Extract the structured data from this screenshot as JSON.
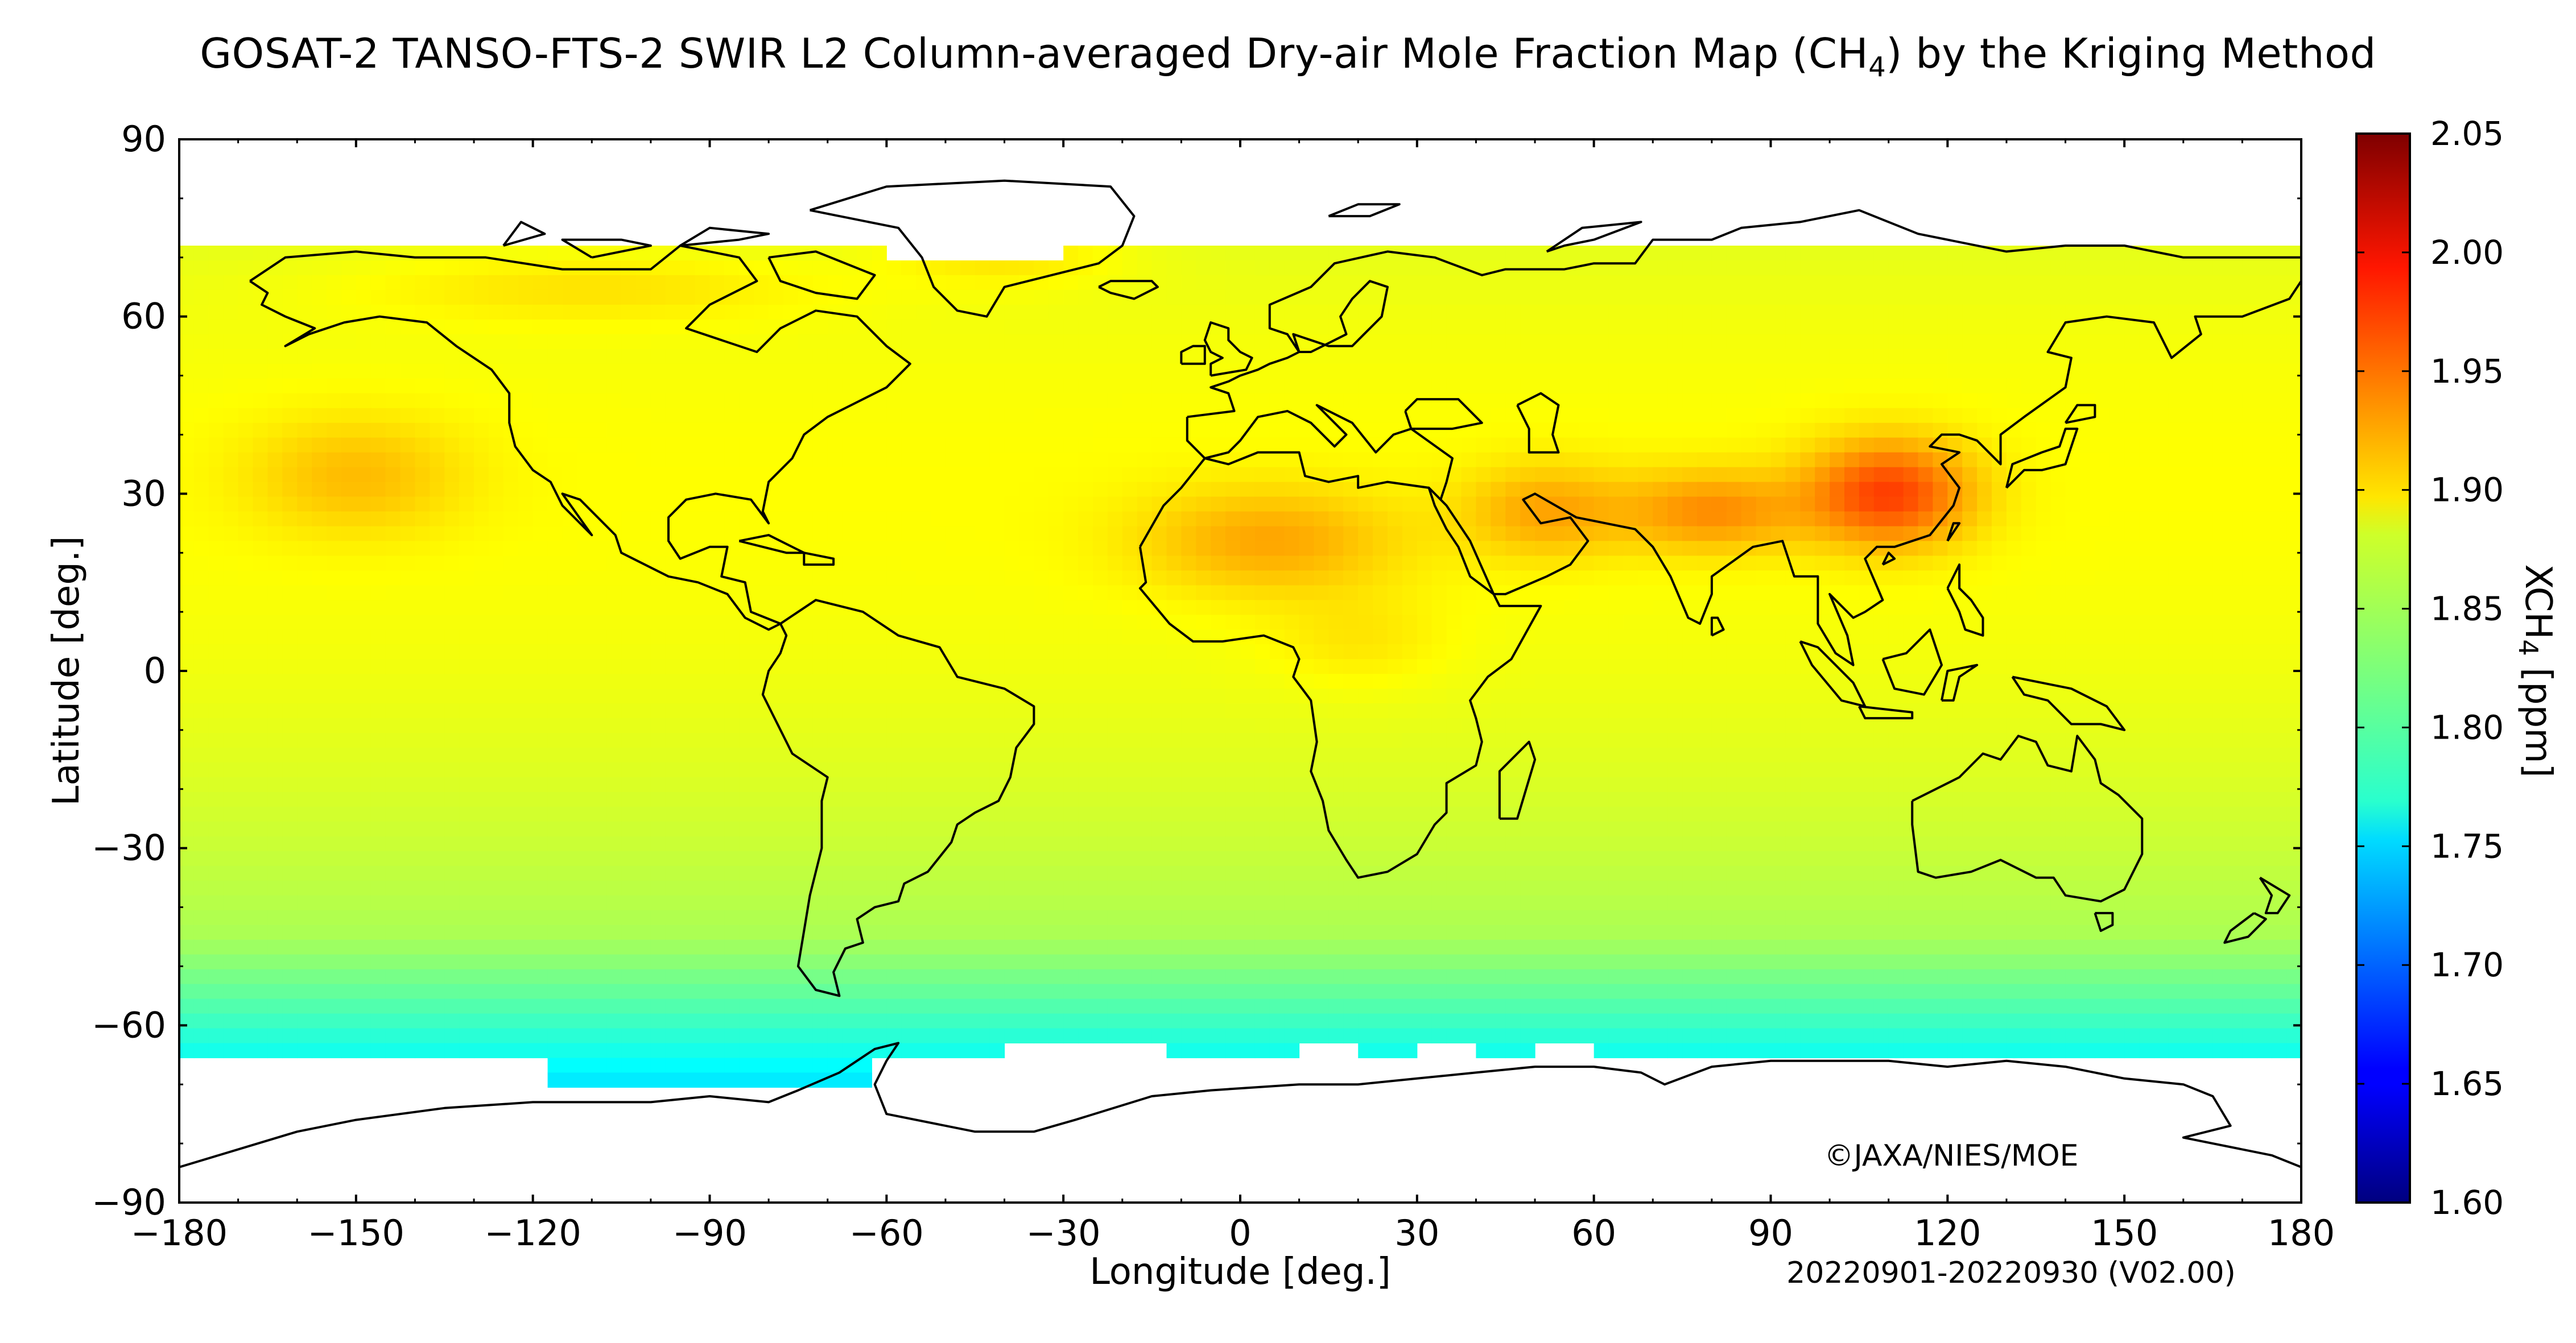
{
  "title": {
    "prefix": "GOSAT-2 TANSO-FTS-2 SWIR L2 Column-averaged Dry-air Mole Fraction Map (CH",
    "subscript": "4",
    "suffix": ") by the Kriging Method"
  },
  "credit": "©JAXA/NIES/MOE",
  "period": "20220901-20220930 (V02.00)",
  "chart_data": {
    "type": "heatmap",
    "xlabel": "Longitude [deg.]",
    "ylabel": "Latitude [deg.]",
    "xlim": [
      -180,
      180
    ],
    "ylim": [
      -90,
      90
    ],
    "x_ticks": [
      -180,
      -150,
      -120,
      -90,
      -60,
      -30,
      0,
      30,
      60,
      90,
      120,
      150,
      180
    ],
    "y_ticks": [
      -90,
      -60,
      -30,
      0,
      30,
      60,
      90
    ],
    "x_tick_labels": [
      "−180",
      "−150",
      "−120",
      "−90",
      "−60",
      "−30",
      "0",
      "30",
      "60",
      "90",
      "120",
      "150",
      "180"
    ],
    "y_tick_labels": [
      "−90",
      "−60",
      "−30",
      "0",
      "30",
      "60",
      "90"
    ],
    "colorbar": {
      "label_prefix": "XCH",
      "label_subscript": "4",
      "label_suffix": " [ppm]",
      "min": 1.6,
      "max": 2.05,
      "ticks": [
        1.6,
        1.65,
        1.7,
        1.75,
        1.8,
        1.85,
        1.9,
        1.95,
        2.0,
        2.05
      ],
      "tick_labels": [
        "1.60",
        "1.65",
        "1.70",
        "1.75",
        "1.80",
        "1.85",
        "1.90",
        "1.95",
        "2.00",
        "2.05"
      ],
      "colormap": "jet"
    },
    "data_coverage_lat": [
      -68,
      72
    ],
    "field_features": [
      {
        "region": "Eastern China",
        "lon": 110,
        "lat": 30,
        "xch4": 1.97
      },
      {
        "region": "South Asia / Indo-Gangetic",
        "lon": 78,
        "lat": 26,
        "xch4": 1.95
      },
      {
        "region": "Middle East / Arabia",
        "lon": 50,
        "lat": 27,
        "xch4": 1.93
      },
      {
        "region": "Sahara",
        "lon": 5,
        "lat": 22,
        "xch4": 1.93
      },
      {
        "region": "North Pacific",
        "lon": -150,
        "lat": 32,
        "xch4": 1.92
      },
      {
        "region": "Tropics",
        "lon": 0,
        "lat": 0,
        "xch4": 1.89
      },
      {
        "region": "Southern mid-latitudes",
        "lon": 0,
        "lat": -35,
        "xch4": 1.85
      },
      {
        "region": "Southern Ocean",
        "lon": 0,
        "lat": -58,
        "xch4": 1.81
      },
      {
        "region": "Antarctic margin",
        "lon": -90,
        "lat": -66,
        "xch4": 1.78
      }
    ]
  }
}
